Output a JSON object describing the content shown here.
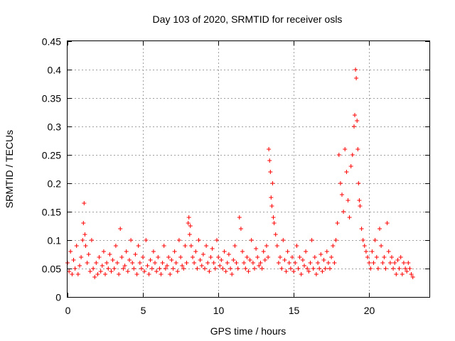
{
  "chart_data": {
    "type": "scatter",
    "title": "Day 103 of 2020, SRMTID for receiver osls",
    "xlabel": "GPS time / hours",
    "ylabel": "SRMTID / TECUs",
    "xlim": [
      0,
      24
    ],
    "ylim": [
      0,
      0.45
    ],
    "xticks": [
      0,
      5,
      10,
      15,
      20
    ],
    "yticks": [
      0,
      0.05,
      0.1,
      0.15,
      0.2,
      0.25,
      0.3,
      0.35,
      0.4,
      0.45
    ],
    "xtick_labels": [
      "0",
      "5",
      "10",
      "15",
      "20"
    ],
    "ytick_labels": [
      "0",
      "0.05",
      "0.1",
      "0.15",
      "0.2",
      "0.25",
      "0.3",
      "0.35",
      "0.4",
      "0.45"
    ],
    "grid": true,
    "marker": "+",
    "color": "#ff0000",
    "series": [
      {
        "x": [
          0.0,
          0.1,
          0.2,
          0.3,
          0.4,
          0.5,
          0.6,
          0.7,
          0.8,
          0.9,
          1.0,
          1.05,
          1.1,
          1.15,
          1.2,
          1.3,
          1.4,
          1.5,
          1.6,
          1.7,
          1.8,
          1.9,
          2.0,
          2.1,
          2.2,
          2.3,
          2.4,
          2.5,
          2.6,
          2.7,
          2.8,
          2.9,
          3.0,
          3.1,
          3.2,
          3.3,
          3.4,
          3.5,
          3.6,
          3.7,
          3.8,
          3.9,
          4.0,
          4.1,
          4.2,
          4.3,
          4.4,
          4.5,
          4.6,
          4.7,
          4.8,
          4.9,
          5.0,
          5.1,
          5.2,
          5.3,
          5.4,
          5.5,
          5.6,
          5.7,
          5.8,
          5.9,
          6.0,
          6.1,
          6.2,
          6.3,
          6.4,
          6.5,
          6.6,
          6.7,
          6.8,
          6.9,
          7.0,
          7.1,
          7.2,
          7.3,
          7.4,
          7.5,
          7.6,
          7.7,
          7.8,
          7.9,
          8.0,
          8.05,
          8.1,
          8.15,
          8.2,
          8.3,
          8.4,
          8.5,
          8.6,
          8.7,
          8.8,
          8.9,
          9.0,
          9.1,
          9.2,
          9.3,
          9.4,
          9.5,
          9.6,
          9.7,
          9.8,
          9.9,
          10.0,
          10.1,
          10.2,
          10.3,
          10.4,
          10.5,
          10.6,
          10.7,
          10.8,
          10.9,
          11.0,
          11.1,
          11.2,
          11.3,
          11.4,
          11.5,
          11.6,
          11.7,
          11.8,
          11.9,
          12.0,
          12.1,
          12.2,
          12.3,
          12.4,
          12.5,
          12.6,
          12.7,
          12.8,
          12.9,
          13.0,
          13.1,
          13.2,
          13.3,
          13.35,
          13.4,
          13.45,
          13.5,
          13.55,
          13.6,
          13.65,
          13.7,
          13.8,
          13.9,
          14.0,
          14.1,
          14.2,
          14.3,
          14.4,
          14.5,
          14.6,
          14.7,
          14.8,
          14.9,
          15.0,
          15.1,
          15.2,
          15.3,
          15.4,
          15.5,
          15.6,
          15.7,
          15.8,
          15.9,
          16.0,
          16.1,
          16.2,
          16.3,
          16.4,
          16.5,
          16.6,
          16.7,
          16.8,
          16.9,
          17.0,
          17.1,
          17.2,
          17.3,
          17.4,
          17.5,
          17.6,
          17.7,
          17.8,
          17.9,
          18.0,
          18.1,
          18.2,
          18.3,
          18.4,
          18.5,
          18.6,
          18.7,
          18.8,
          18.9,
          19.0,
          19.05,
          19.1,
          19.15,
          19.2,
          19.25,
          19.3,
          19.35,
          19.4,
          19.5,
          19.6,
          19.7,
          19.8,
          19.9,
          20.0,
          20.1,
          20.2,
          20.3,
          20.4,
          20.5,
          20.6,
          20.7,
          20.8,
          20.9,
          21.0,
          21.1,
          21.2,
          21.3,
          21.4,
          21.5,
          21.6,
          21.7,
          21.8,
          21.9,
          22.0,
          22.1,
          22.2,
          22.3,
          22.4,
          22.5,
          22.6,
          22.7,
          22.8,
          22.9
        ],
        "y": [
          0.06,
          0.045,
          0.08,
          0.04,
          0.065,
          0.05,
          0.09,
          0.04,
          0.055,
          0.07,
          0.1,
          0.13,
          0.165,
          0.11,
          0.09,
          0.06,
          0.075,
          0.045,
          0.1,
          0.05,
          0.035,
          0.06,
          0.04,
          0.07,
          0.045,
          0.055,
          0.08,
          0.04,
          0.06,
          0.05,
          0.075,
          0.045,
          0.065,
          0.05,
          0.09,
          0.06,
          0.04,
          0.12,
          0.07,
          0.05,
          0.055,
          0.08,
          0.045,
          0.065,
          0.1,
          0.06,
          0.05,
          0.075,
          0.04,
          0.09,
          0.06,
          0.05,
          0.07,
          0.045,
          0.1,
          0.055,
          0.04,
          0.065,
          0.05,
          0.08,
          0.06,
          0.045,
          0.07,
          0.05,
          0.04,
          0.06,
          0.09,
          0.05,
          0.055,
          0.07,
          0.04,
          0.065,
          0.05,
          0.08,
          0.06,
          0.045,
          0.1,
          0.07,
          0.055,
          0.05,
          0.09,
          0.06,
          0.13,
          0.14,
          0.11,
          0.125,
          0.09,
          0.07,
          0.06,
          0.08,
          0.05,
          0.1,
          0.065,
          0.055,
          0.075,
          0.05,
          0.09,
          0.06,
          0.045,
          0.07,
          0.085,
          0.06,
          0.05,
          0.1,
          0.07,
          0.055,
          0.065,
          0.05,
          0.08,
          0.045,
          0.06,
          0.075,
          0.05,
          0.04,
          0.065,
          0.09,
          0.06,
          0.05,
          0.14,
          0.12,
          0.08,
          0.06,
          0.05,
          0.07,
          0.045,
          0.065,
          0.1,
          0.06,
          0.05,
          0.085,
          0.07,
          0.055,
          0.06,
          0.05,
          0.08,
          0.065,
          0.09,
          0.07,
          0.26,
          0.24,
          0.22,
          0.175,
          0.16,
          0.2,
          0.14,
          0.13,
          0.11,
          0.09,
          0.06,
          0.07,
          0.05,
          0.1,
          0.065,
          0.045,
          0.08,
          0.06,
          0.05,
          0.07,
          0.045,
          0.06,
          0.09,
          0.05,
          0.07,
          0.04,
          0.065,
          0.055,
          0.08,
          0.05,
          0.045,
          0.06,
          0.1,
          0.05,
          0.07,
          0.04,
          0.06,
          0.05,
          0.075,
          0.045,
          0.065,
          0.05,
          0.08,
          0.06,
          0.05,
          0.07,
          0.09,
          0.06,
          0.1,
          0.13,
          0.25,
          0.2,
          0.18,
          0.15,
          0.26,
          0.22,
          0.17,
          0.14,
          0.23,
          0.25,
          0.3,
          0.32,
          0.4,
          0.385,
          0.31,
          0.26,
          0.2,
          0.17,
          0.16,
          0.12,
          0.1,
          0.09,
          0.08,
          0.07,
          0.06,
          0.05,
          0.08,
          0.06,
          0.1,
          0.07,
          0.05,
          0.12,
          0.09,
          0.06,
          0.07,
          0.05,
          0.13,
          0.08,
          0.06,
          0.07,
          0.05,
          0.06,
          0.04,
          0.065,
          0.05,
          0.07,
          0.04,
          0.06,
          0.05,
          0.045,
          0.06,
          0.05,
          0.04,
          0.035
        ]
      }
    ]
  }
}
